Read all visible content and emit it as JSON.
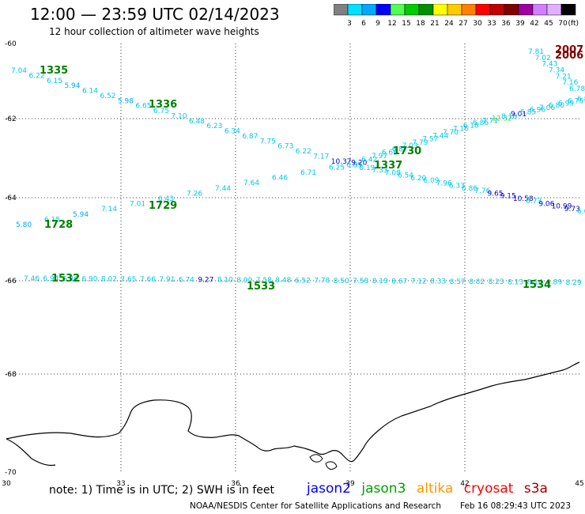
{
  "header": {
    "title": "12:00 — 23:59 UTC 02/14/2023",
    "subtitle": "12 hour collection of altimeter wave heights"
  },
  "legend": {
    "unit": "(ft)",
    "colors": [
      "#808080",
      "#00e0ff",
      "#00a8ff",
      "#0000ff",
      "#50ff50",
      "#00cc00",
      "#009000",
      "#ffff00",
      "#ffcc00",
      "#ff8000",
      "#ff0000",
      "#c00000",
      "#800000",
      "#a000a0",
      "#d080ff",
      "#e0b0ff",
      "#000000"
    ],
    "ticks": [
      "3",
      "6",
      "9",
      "12",
      "15",
      "18",
      "21",
      "24",
      "27",
      "30",
      "33",
      "36",
      "39",
      "42",
      "45",
      "70"
    ]
  },
  "axes": {
    "lon_labels": [
      "30",
      "33",
      "36",
      "39",
      "42",
      "45"
    ],
    "lat_labels": [
      "-60",
      "-62",
      "-64",
      "-66",
      "-68",
      "-70"
    ]
  },
  "passes": [
    {
      "label": "1335",
      "color": "#008000"
    },
    {
      "label": "1336",
      "color": "#008000"
    },
    {
      "label": "1337",
      "color": "#008000"
    },
    {
      "label": "1729",
      "color": "#008000"
    },
    {
      "label": "1728",
      "color": "#008000"
    },
    {
      "label": "1730",
      "color": "#008000"
    },
    {
      "label": "1532",
      "color": "#008000"
    },
    {
      "label": "1533",
      "color": "#008000"
    },
    {
      "label": "1534",
      "color": "#008000"
    },
    {
      "label": "2007",
      "color": "#800000"
    },
    {
      "label": "2006",
      "color": "#800000"
    }
  ],
  "track_values": {
    "upper_descending": [
      "7.04",
      "6.22",
      "6.15",
      "5.94",
      "6.14",
      "6.52",
      "5.98",
      "6.65",
      "6.75",
      "7.10",
      "6.48",
      "6.23",
      "6.34",
      "6.87",
      "7.75",
      "6.73",
      "6.22",
      "7.17",
      "10.37",
      "6.85",
      "8.19",
      "7.33",
      "7.08",
      "6.54",
      "6.20",
      "6.09",
      "7.96",
      "6.33",
      "6.86",
      "7.76",
      "9.65",
      "9.15",
      "10.58",
      "6.73",
      "9.06",
      "10.99",
      "9.73",
      "6.63"
    ],
    "upper_ascending": [
      "5.80",
      "6.15",
      "5.94",
      "7.14",
      "7.01",
      "6.43",
      "7.26",
      "7.44",
      "7.64",
      "6.46",
      "6.71",
      "6.25",
      "9.20",
      "6.42",
      "7.97",
      "6.68",
      "6.87",
      "7.03",
      "7.79",
      "7.57",
      "7.44",
      "7.70",
      "7.16",
      "6.18",
      "6.86",
      "7.71",
      "12.32",
      "8.18",
      "9.01",
      "6.85",
      "6.96",
      "7.06",
      "6.80",
      "6.99",
      "6.75",
      "6.81"
    ],
    "lower_row": [
      "7.46",
      "6.94",
      "6.86",
      "6.90",
      "8.02",
      "7.65",
      "7.66",
      "7.91",
      "6.74",
      "9.27",
      "8.10",
      "8.90",
      "7.58",
      "8.48",
      "6.52",
      "7.78",
      "8.50",
      "7.58",
      "8.19",
      "8.67",
      "7.12",
      "8.33",
      "8.57",
      "8.82",
      "8.23",
      "8.13",
      "8.14",
      "6.89",
      "8.29",
      "8.43"
    ],
    "top_right": [
      "7.81",
      "7.02",
      "7.43",
      "7.34",
      "7.21",
      "7.16",
      "6.78"
    ]
  },
  "footer": {
    "note": "note:  1) Time is in UTC;  2) SWH is in feet",
    "satellites": [
      {
        "name": "jason2",
        "color": "#0000ff"
      },
      {
        "name": "jason3",
        "color": "#00a000"
      },
      {
        "name": "altika",
        "color": "#ff9900"
      },
      {
        "name": "cryosat",
        "color": "#ff0000"
      },
      {
        "name": "s3a",
        "color": "#a00000"
      }
    ],
    "credit": "NOAA/NESDIS Center for Satellite Applications and Research",
    "timestamp": "Feb 16 08:29:43 UTC 2023"
  }
}
